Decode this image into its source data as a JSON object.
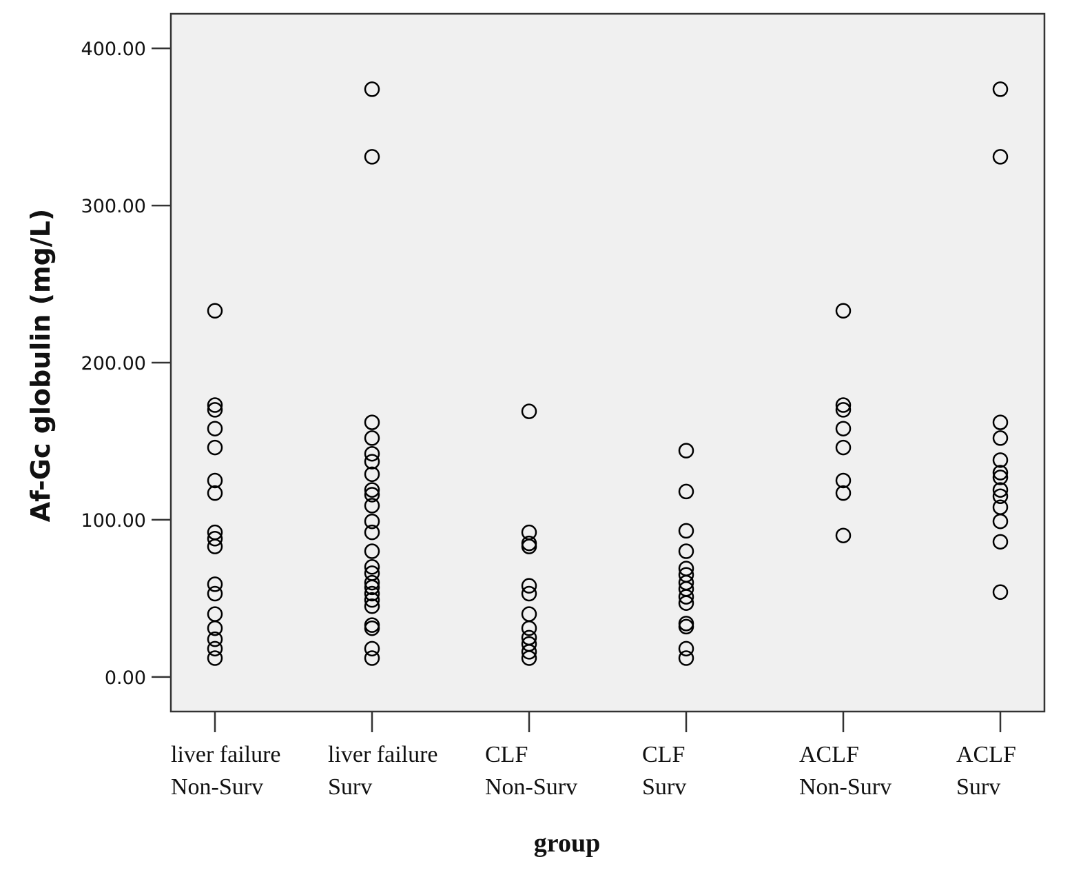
{
  "chart_data": {
    "type": "scatter",
    "y_label": "Af-Gc globulin (mg/L)",
    "x_label": "group",
    "categories": [
      [
        "liver failure",
        "Non-Surv"
      ],
      [
        "liver failure",
        "Surv"
      ],
      [
        "CLF",
        "Non-Surv"
      ],
      [
        "CLF",
        "Surv"
      ],
      [
        "ACLF",
        "Non-Surv"
      ],
      [
        "ACLF",
        "Surv"
      ]
    ],
    "values": [
      [
        233,
        173,
        170,
        158,
        146,
        125,
        117,
        92,
        88,
        83,
        59,
        53,
        40,
        31,
        24,
        18,
        12
      ],
      [
        374,
        331,
        162,
        152,
        142,
        137,
        129,
        119,
        116,
        109,
        99,
        92,
        80,
        70,
        66,
        60,
        57,
        53,
        49,
        45,
        33,
        31,
        18,
        12
      ],
      [
        169,
        92,
        85,
        83,
        58,
        53,
        40,
        31,
        25,
        21,
        16,
        12
      ],
      [
        144,
        118,
        93,
        80,
        69,
        65,
        60,
        56,
        51,
        47,
        34,
        32,
        18,
        12
      ],
      [
        233,
        173,
        170,
        158,
        146,
        125,
        117,
        90
      ],
      [
        374,
        331,
        162,
        152,
        138,
        130,
        127,
        119,
        115,
        108,
        99,
        86,
        54
      ]
    ],
    "color": "#000000",
    "ylim": [
      -22,
      422
    ],
    "yticks": [
      {
        "value": 0,
        "label": "0.00"
      },
      {
        "value": 100,
        "label": "100.00"
      },
      {
        "value": 200,
        "label": "200.00"
      },
      {
        "value": 300,
        "label": "300.00"
      },
      {
        "value": 400,
        "label": "400.00"
      }
    ]
  }
}
